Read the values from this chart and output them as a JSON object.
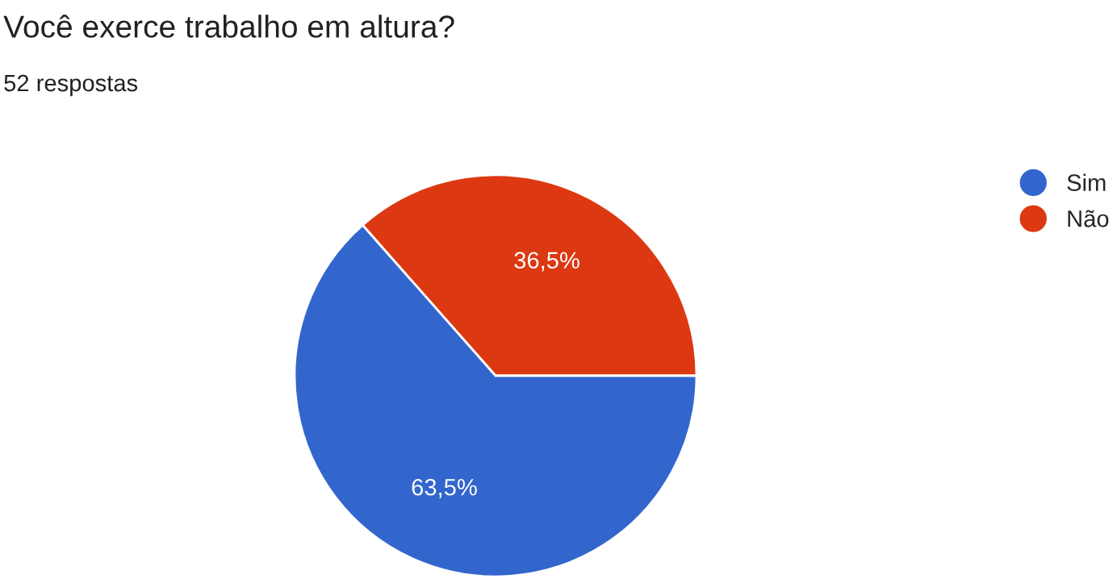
{
  "chart_data": {
    "type": "pie",
    "title": "Você exerce trabalho em altura?",
    "subtitle": "52 respostas",
    "categories": [
      "Sim",
      "Não"
    ],
    "values": [
      63.5,
      36.5
    ],
    "colors": [
      "#3366cc",
      "#dc3912"
    ],
    "value_labels": [
      "63,5%",
      "36,5%"
    ],
    "legend": "right"
  }
}
